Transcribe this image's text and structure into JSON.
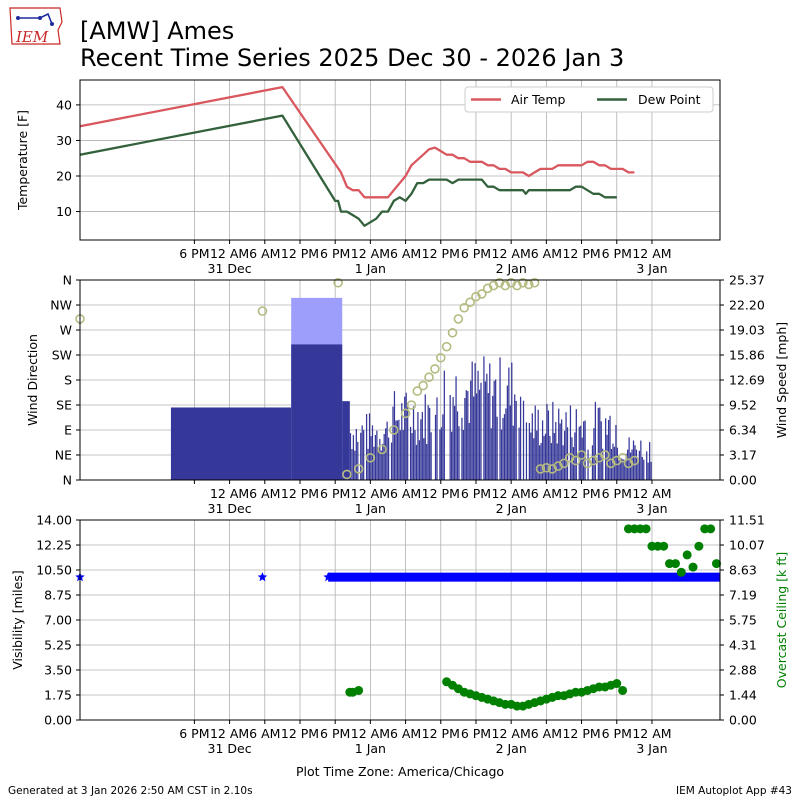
{
  "header": {
    "title_line1": "[AMW] Ames",
    "title_line2": "Recent Time Series 2025 Dec 30 - 2026 Jan 3",
    "logo_text": "IEM"
  },
  "footer": {
    "generated": "Generated at 3 Jan 2026 2:50 AM CST in 2.10s",
    "app": "IEM Autoplot App #43",
    "xlabel": "Plot Time Zone: America/Chicago"
  },
  "time_axis": {
    "range_hours": [
      -1.5,
      107.6
    ],
    "ticks": [
      {
        "h": 18,
        "label": "6 PM"
      },
      {
        "h": 24,
        "label": "12 AM",
        "date": "31 Dec"
      },
      {
        "h": 30,
        "label": "6 AM"
      },
      {
        "h": 36,
        "label": "12 PM"
      },
      {
        "h": 42,
        "label": "6 PM"
      },
      {
        "h": 48,
        "label": "12 AM",
        "date": "1 Jan"
      },
      {
        "h": 54,
        "label": "6 AM"
      },
      {
        "h": 60,
        "label": "12 PM"
      },
      {
        "h": 66,
        "label": "6 PM"
      },
      {
        "h": 72,
        "label": "12 AM",
        "date": "2 Jan"
      },
      {
        "h": 78,
        "label": "6 AM"
      },
      {
        "h": 84,
        "label": "12 PM"
      },
      {
        "h": 90,
        "label": "6 PM"
      },
      {
        "h": 96,
        "label": "12 AM",
        "date": "3 Jan"
      }
    ]
  },
  "colors": {
    "air_temp": "#d9585f",
    "dew_point": "#33613b",
    "gust_bar": "#9d9dfb",
    "speed_bar": "#363899",
    "wind_dir": "#b5bb80",
    "visibility": "#0000ff",
    "ceiling": "#008000"
  },
  "chart_data": [
    {
      "type": "line",
      "title": "",
      "ylabel": "Temperature [F]",
      "ylim": [
        2,
        47
      ],
      "yticks": [
        10,
        20,
        30,
        40
      ],
      "grid": true,
      "legend": "top-right",
      "series": [
        {
          "name": "Air Temp",
          "points": [
            [
              -1.5,
              34
            ],
            [
              33,
              45
            ],
            [
              43,
              21
            ],
            [
              44,
              17
            ],
            [
              45,
              16
            ],
            [
              46,
              16
            ],
            [
              47,
              14
            ],
            [
              50,
              14
            ],
            [
              51,
              14
            ],
            [
              52,
              16
            ],
            [
              54,
              20
            ],
            [
              55,
              23
            ],
            [
              57,
              26
            ],
            [
              58,
              27.5
            ],
            [
              59,
              28
            ],
            [
              60,
              27
            ],
            [
              61,
              26
            ],
            [
              62,
              26
            ],
            [
              63,
              25
            ],
            [
              64,
              25
            ],
            [
              65,
              24
            ],
            [
              66,
              24
            ],
            [
              67,
              24
            ],
            [
              68,
              23
            ],
            [
              69,
              23
            ],
            [
              70,
              22
            ],
            [
              71,
              22
            ],
            [
              72,
              21
            ],
            [
              73,
              21
            ],
            [
              74,
              21
            ],
            [
              75,
              20
            ],
            [
              76,
              21
            ],
            [
              77,
              22
            ],
            [
              78,
              22
            ],
            [
              79,
              22
            ],
            [
              80,
              23
            ],
            [
              81,
              23
            ],
            [
              82,
              23
            ],
            [
              83,
              23
            ],
            [
              84,
              23
            ],
            [
              85,
              24
            ],
            [
              86,
              24
            ],
            [
              87,
              23
            ],
            [
              88,
              23
            ],
            [
              89,
              22
            ],
            [
              90,
              22
            ],
            [
              91,
              22
            ],
            [
              92,
              21
            ],
            [
              93,
              21
            ]
          ]
        },
        {
          "name": "Dew Point",
          "points": [
            [
              -1.5,
              26
            ],
            [
              33,
              37
            ],
            [
              42,
              13
            ],
            [
              42.5,
              13
            ],
            [
              43,
              10
            ],
            [
              44,
              10
            ],
            [
              45,
              9
            ],
            [
              46,
              8
            ],
            [
              47,
              6
            ],
            [
              48,
              7
            ],
            [
              49,
              8
            ],
            [
              50,
              10
            ],
            [
              51,
              10
            ],
            [
              52,
              13
            ],
            [
              53,
              14
            ],
            [
              54,
              13
            ],
            [
              55,
              15
            ],
            [
              56,
              18
            ],
            [
              57,
              18
            ],
            [
              58,
              19
            ],
            [
              59,
              19
            ],
            [
              60,
              19
            ],
            [
              61,
              19
            ],
            [
              62,
              18
            ],
            [
              63,
              19
            ],
            [
              64,
              19
            ],
            [
              65,
              19
            ],
            [
              66,
              19
            ],
            [
              67,
              19
            ],
            [
              68,
              17
            ],
            [
              69,
              17
            ],
            [
              70,
              16
            ],
            [
              71,
              16
            ],
            [
              72,
              16
            ],
            [
              73,
              16
            ],
            [
              74,
              16
            ],
            [
              74.5,
              15
            ],
            [
              75,
              16
            ],
            [
              76,
              16
            ],
            [
              77,
              16
            ],
            [
              78,
              16
            ],
            [
              79,
              16
            ],
            [
              80,
              16
            ],
            [
              81,
              16
            ],
            [
              82,
              16
            ],
            [
              83,
              17
            ],
            [
              84,
              17
            ],
            [
              85,
              16
            ],
            [
              86,
              15
            ],
            [
              87,
              15
            ],
            [
              88,
              14
            ],
            [
              89,
              14
            ],
            [
              90,
              14
            ]
          ]
        }
      ]
    },
    {
      "type": "bar",
      "title": "",
      "ylabel": "Wind Direction",
      "y2label": "Wind Speed [mph]",
      "dir_ticks": [
        "N",
        "NE",
        "E",
        "SE",
        "S",
        "SW",
        "W",
        "NW",
        "N"
      ],
      "speed_ticks": [
        "0.00",
        "3.17",
        "6.34",
        "9.52",
        "12.69",
        "15.86",
        "19.03",
        "22.20",
        "25.37"
      ],
      "speed_lim": [
        0,
        25.37
      ],
      "grid": true,
      "series": [
        {
          "name": "Gust",
          "segments": [
            [
              34.5,
              43.2,
              23.1
            ]
          ]
        },
        {
          "name": "Speed",
          "segments": [
            [
              14,
              34.5,
              9.2
            ],
            [
              34.5,
              43.2,
              17.2
            ],
            [
              43.2,
              44.5,
              10
            ],
            [
              44.5,
              51,
              6
            ],
            [
              51,
              60,
              8
            ],
            [
              60,
              75,
              11
            ],
            [
              75,
              90,
              7
            ],
            [
              90,
              96,
              4
            ]
          ]
        },
        {
          "name": "Direction",
          "points": [
            [
              -1.5,
              290
            ],
            [
              29.6,
              304
            ],
            [
              42.5,
              355
            ],
            [
              44,
              10
            ],
            [
              46,
              20
            ],
            [
              48,
              40
            ],
            [
              50,
              55
            ],
            [
              52,
              90
            ],
            [
              54,
              120
            ],
            [
              55,
              135
            ],
            [
              56,
              160
            ],
            [
              57,
              170
            ],
            [
              58,
              185
            ],
            [
              59,
              200
            ],
            [
              60,
              220
            ],
            [
              61,
              240
            ],
            [
              62,
              265
            ],
            [
              63,
              290
            ],
            [
              64,
              310
            ],
            [
              65,
              320
            ],
            [
              66,
              330
            ],
            [
              67,
              335
            ],
            [
              68,
              345
            ],
            [
              69,
              350
            ],
            [
              70,
              355
            ],
            [
              71,
              350
            ],
            [
              72,
              355
            ],
            [
              73,
              350
            ],
            [
              74,
              355
            ],
            [
              75,
              352
            ],
            [
              76,
              355
            ],
            [
              77,
              20
            ],
            [
              78,
              22
            ],
            [
              79,
              20
            ],
            [
              80,
              25
            ],
            [
              81,
              30
            ],
            [
              82,
              40
            ],
            [
              83,
              35
            ],
            [
              84,
              45
            ],
            [
              85,
              30
            ],
            [
              86,
              35
            ],
            [
              87,
              40
            ],
            [
              88,
              45
            ],
            [
              89,
              30
            ],
            [
              90,
              35
            ],
            [
              91,
              40
            ],
            [
              92,
              30
            ],
            [
              93,
              35
            ]
          ]
        }
      ]
    },
    {
      "type": "scatter",
      "title": "",
      "ylabel": "Visibility [miles]",
      "y2label": "Overcast Ceiling [k ft]",
      "ylim": [
        0,
        14
      ],
      "yticks": [
        "0.00",
        "1.75",
        "3.50",
        "5.25",
        "7.00",
        "8.75",
        "10.50",
        "12.25",
        "14.00"
      ],
      "y2lim": [
        0,
        11.51
      ],
      "y2ticks": [
        "0.00",
        "1.44",
        "2.88",
        "4.31",
        "5.75",
        "7.19",
        "8.63",
        "10.07",
        "11.51"
      ],
      "grid": true,
      "series": [
        {
          "name": "Visibility",
          "points": [
            [
              -1.5,
              10
            ],
            [
              29.6,
              10
            ],
            [
              40.8,
              10
            ]
          ],
          "continuous": [
            40.8,
            107.6,
            10
          ]
        },
        {
          "name": "Overcast Ceiling",
          "points": [
            [
              44.5,
              1.6
            ],
            [
              45,
              1.6
            ],
            [
              46,
              1.7
            ],
            [
              61,
              2.2
            ],
            [
              62,
              2.0
            ],
            [
              63,
              1.8
            ],
            [
              64,
              1.6
            ],
            [
              65,
              1.5
            ],
            [
              66,
              1.4
            ],
            [
              67,
              1.3
            ],
            [
              68,
              1.2
            ],
            [
              69,
              1.1
            ],
            [
              70,
              1.0
            ],
            [
              71,
              0.9
            ],
            [
              72,
              0.9
            ],
            [
              73,
              0.8
            ],
            [
              74,
              0.8
            ],
            [
              75,
              0.9
            ],
            [
              76,
              1.0
            ],
            [
              77,
              1.1
            ],
            [
              78,
              1.2
            ],
            [
              79,
              1.3
            ],
            [
              80,
              1.4
            ],
            [
              81,
              1.4
            ],
            [
              82,
              1.5
            ],
            [
              83,
              1.6
            ],
            [
              84,
              1.6
            ],
            [
              85,
              1.7
            ],
            [
              86,
              1.8
            ],
            [
              87,
              1.9
            ],
            [
              88,
              1.9
            ],
            [
              89,
              2.0
            ],
            [
              90,
              2.1
            ],
            [
              91,
              1.7
            ],
            [
              92,
              11.0
            ],
            [
              93,
              11.0
            ],
            [
              94,
              11.0
            ],
            [
              95,
              11.0
            ],
            [
              96,
              10.0
            ],
            [
              97,
              10.0
            ],
            [
              98,
              10.0
            ],
            [
              99,
              9.0
            ],
            [
              100,
              9.0
            ],
            [
              101,
              8.5
            ],
            [
              102,
              9.5
            ],
            [
              103,
              8.8
            ],
            [
              104,
              10.0
            ],
            [
              105,
              11.0
            ],
            [
              106,
              11.0
            ],
            [
              107,
              9.0
            ]
          ]
        }
      ]
    }
  ]
}
